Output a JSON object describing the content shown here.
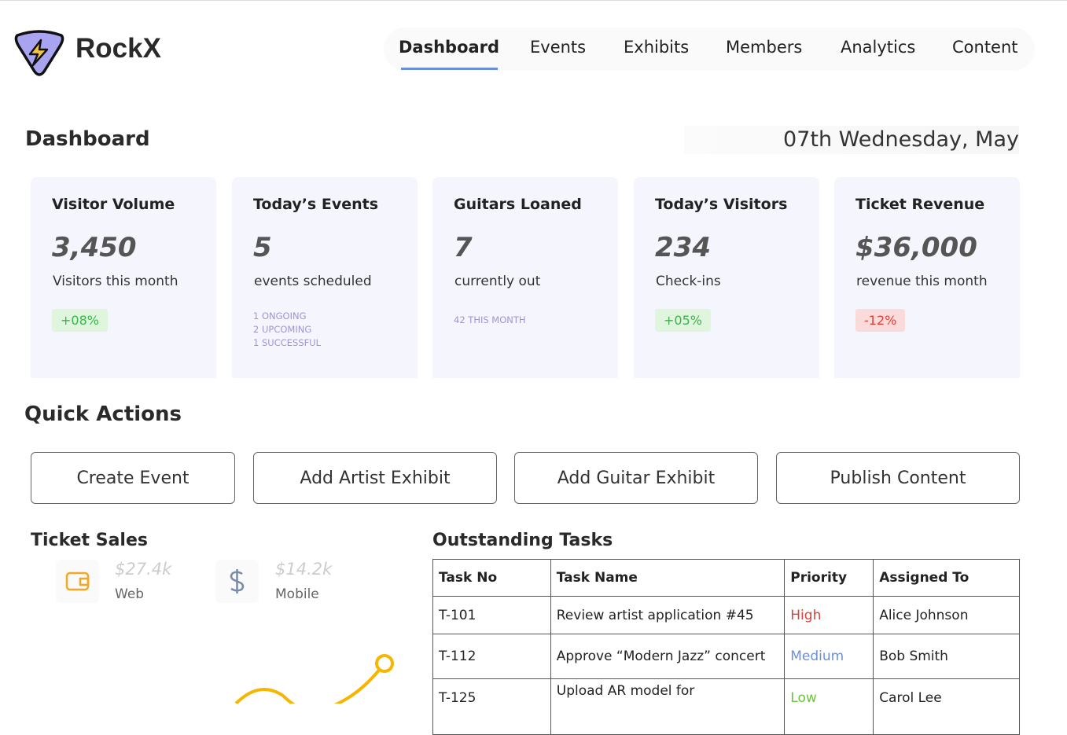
{
  "brand": "RockX",
  "nav": [
    "Dashboard",
    "Events",
    "Exhibits",
    "Members",
    "Analytics",
    "Content"
  ],
  "header": {
    "title": "Dashboard",
    "date": "07th Wednesday, May"
  },
  "stats": [
    {
      "title": "Visitor Volume",
      "value": "3,450",
      "caption": "Visitors this month",
      "badge": "+08%"
    },
    {
      "title": "Today’s Events",
      "value": "5",
      "caption": "events scheduled",
      "notes": [
        "1 ONGOING",
        "2 UPCOMING",
        "1 SUCCESSFUL"
      ]
    },
    {
      "title": "Guitars Loaned",
      "value": "7",
      "caption": "currently out",
      "notes": [
        "42 THIS MONTH"
      ]
    },
    {
      "title": "Today’s Visitors",
      "value": "234",
      "caption": "Check-ins",
      "badge": "+05%"
    },
    {
      "title": "Ticket Revenue",
      "value": "$36,000",
      "caption": "revenue this month",
      "badge": "-12%"
    }
  ],
  "quick_actions": {
    "title": "Quick Actions",
    "buttons": [
      "Create Event",
      "Add Artist Exhibit",
      "Add Guitar Exhibit",
      "Publish Content"
    ]
  },
  "ticket_sales": {
    "title": "Ticket Sales",
    "items": [
      {
        "amount": "$27.4k",
        "label": "Web"
      },
      {
        "amount": "$14.2k",
        "label": "Mobile"
      }
    ]
  },
  "tasks": {
    "title": "Outstanding Tasks",
    "columns": [
      "Task No",
      "Task Name",
      "Priority",
      "Assigned To"
    ],
    "rows": [
      [
        "T-101",
        "Review artist application #45",
        "High",
        "Alice Johnson"
      ],
      [
        "T-112",
        "Approve “Modern Jazz” concert",
        "Medium",
        "Bob Smith"
      ],
      [
        "T-125",
        "Upload AR model for",
        "Low",
        "Carol Lee"
      ]
    ]
  }
}
